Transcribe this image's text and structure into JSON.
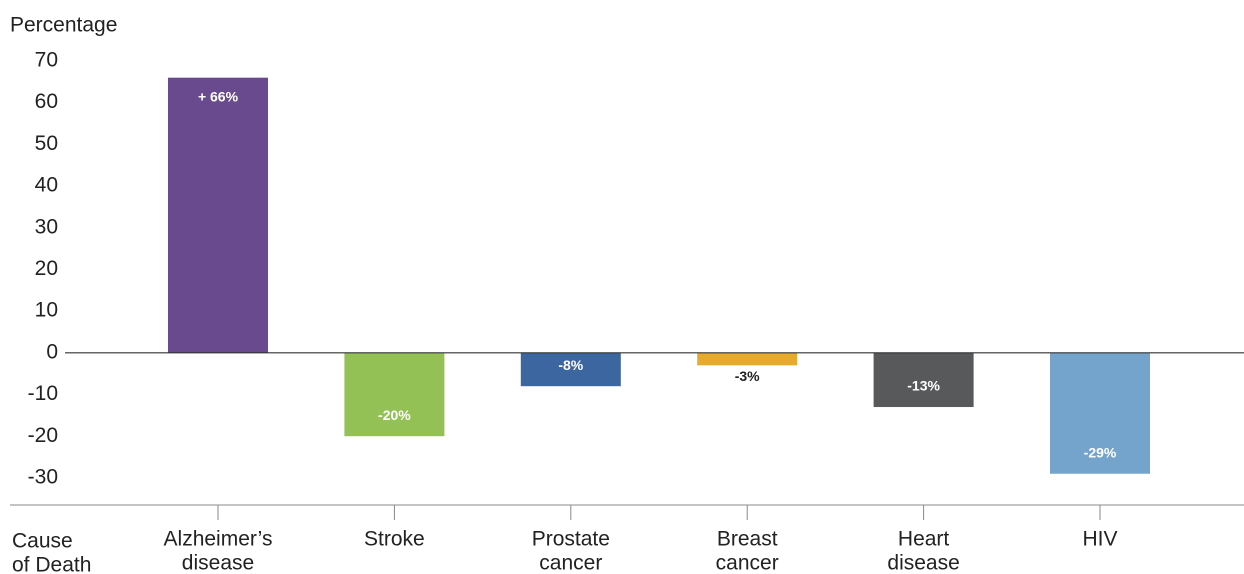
{
  "chart_data": {
    "type": "bar",
    "y_axis_label": "Percentage",
    "x_axis_label": [
      "Cause",
      "of Death"
    ],
    "categories": [
      [
        "Alzheimer’s",
        "disease"
      ],
      [
        "Stroke"
      ],
      [
        "Prostate",
        "cancer"
      ],
      [
        "Breast",
        "cancer"
      ],
      [
        "Heart",
        "disease"
      ],
      [
        "HIV"
      ]
    ],
    "values": [
      66,
      -20,
      -8,
      -3,
      -13,
      -29
    ],
    "value_labels": [
      "+ 66%",
      "-20%",
      "-8%",
      "-3%",
      "-13%",
      "-29%"
    ],
    "colors": [
      "#6a4a8e",
      "#93c155",
      "#3c66a0",
      "#e6ab2c",
      "#58595b",
      "#74a3cb"
    ],
    "ylim": [
      -36.5,
      70
    ],
    "yticks": [
      70,
      60,
      50,
      40,
      30,
      20,
      10,
      0,
      -10,
      -20,
      -30
    ]
  }
}
